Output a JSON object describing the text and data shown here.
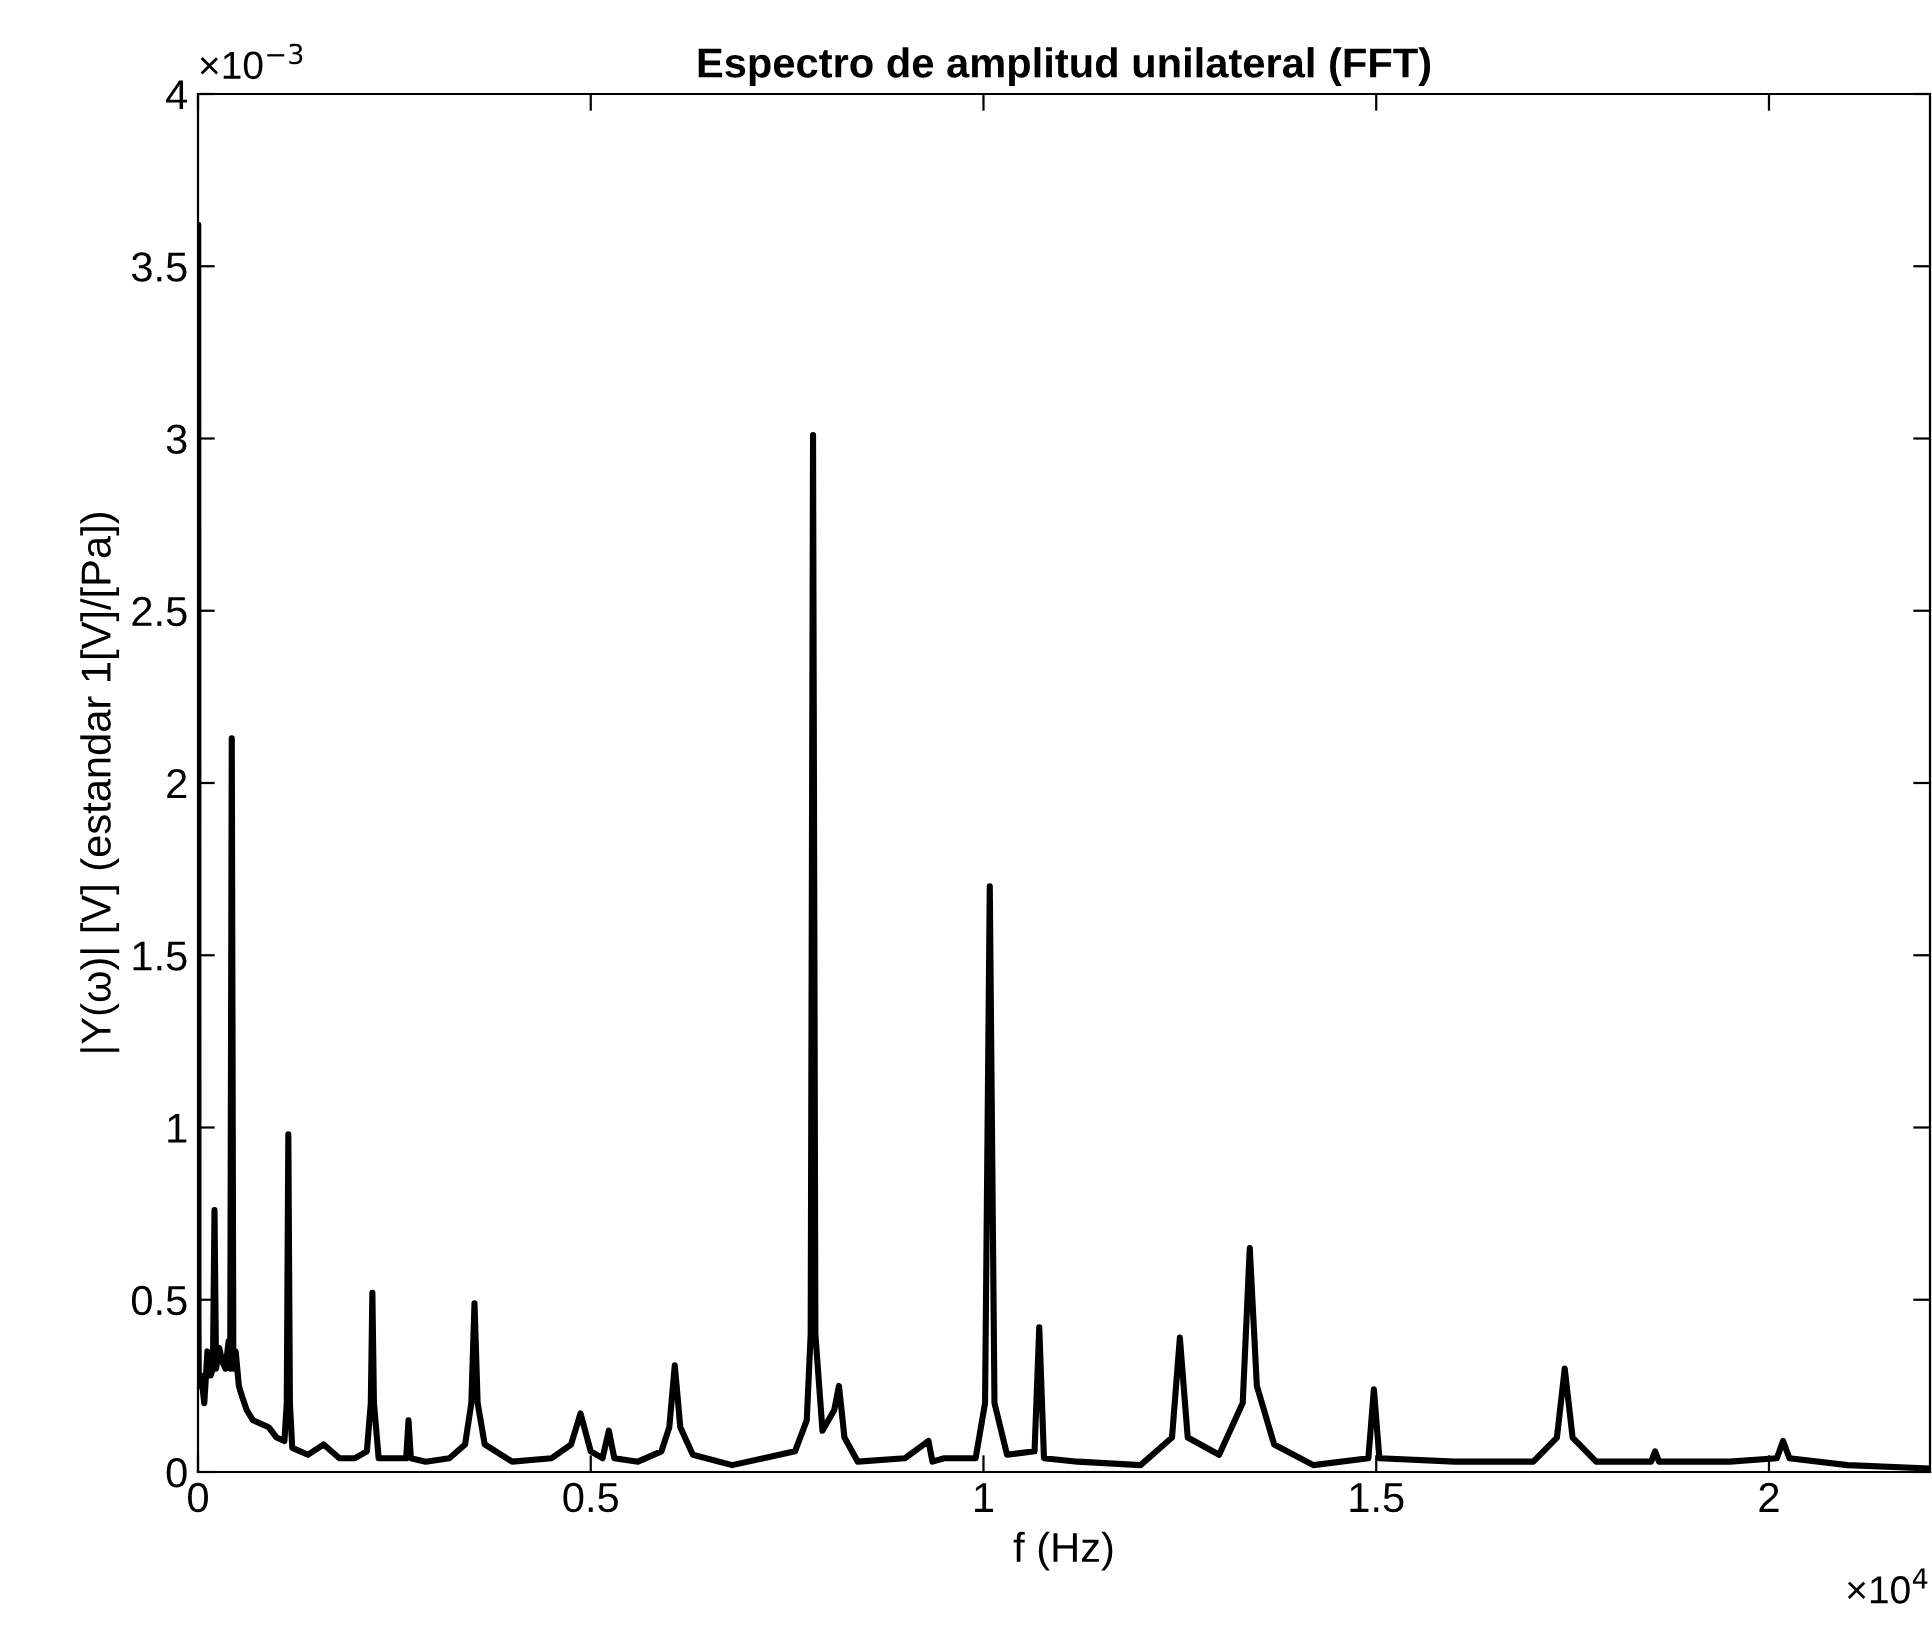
{
  "chart_data": {
    "type": "line",
    "title": "Espectro de amplitud unilateral (FFT)",
    "xlabel": "f (Hz)",
    "ylabel": "|Y(ω)| [V] (estandar 1[V]/[Pa])",
    "annotations": [
      "×10$^{−3}$",
      "×10$^{4}$"
    ],
    "x": [
      0,
      0.0003,
      0.0006,
      0.0009,
      0.0012,
      0.004,
      0.008,
      0.012,
      0.016,
      0.019,
      0.021,
      0.023,
      0.027,
      0.031,
      0.035,
      0.039,
      0.041,
      0.043,
      0.045,
      0.048,
      0.052,
      0.056,
      0.062,
      0.07,
      0.08,
      0.09,
      0.1,
      0.11,
      0.113,
      0.115,
      0.117,
      0.12,
      0.14,
      0.16,
      0.18,
      0.2,
      0.215,
      0.22,
      0.222,
      0.224,
      0.23,
      0.25,
      0.265,
      0.268,
      0.271,
      0.29,
      0.32,
      0.34,
      0.348,
      0.352,
      0.356,
      0.365,
      0.4,
      0.45,
      0.475,
      0.487,
      0.5,
      0.515,
      0.523,
      0.53,
      0.56,
      0.59,
      0.6,
      0.607,
      0.614,
      0.63,
      0.68,
      0.72,
      0.76,
      0.775,
      0.78,
      0.783,
      0.786,
      0.795,
      0.81,
      0.816,
      0.823,
      0.84,
      0.9,
      0.93,
      0.935,
      0.95,
      0.99,
      1.002,
      1.008,
      1.014,
      1.03,
      1.065,
      1.071,
      1.077,
      1.12,
      1.2,
      1.24,
      1.25,
      1.26,
      1.3,
      1.33,
      1.339,
      1.348,
      1.37,
      1.42,
      1.49,
      1.497,
      1.504,
      1.6,
      1.7,
      1.73,
      1.74,
      1.75,
      1.78,
      1.85,
      1.855,
      1.86,
      1.95,
      2.01,
      2.018,
      2.026,
      2.1,
      2.205
    ],
    "values": [
      1.65,
      3.62,
      0.45,
      0.3,
      0.25,
      0.28,
      0.2,
      0.35,
      0.28,
      0.3,
      0.76,
      0.3,
      0.36,
      0.32,
      0.3,
      0.38,
      0.3,
      2.13,
      0.3,
      0.35,
      0.25,
      0.22,
      0.18,
      0.15,
      0.14,
      0.13,
      0.1,
      0.09,
      0.2,
      0.98,
      0.2,
      0.07,
      0.05,
      0.08,
      0.04,
      0.04,
      0.06,
      0.2,
      0.52,
      0.2,
      0.04,
      0.04,
      0.04,
      0.15,
      0.04,
      0.03,
      0.04,
      0.08,
      0.2,
      0.49,
      0.2,
      0.08,
      0.03,
      0.04,
      0.08,
      0.17,
      0.06,
      0.04,
      0.12,
      0.04,
      0.03,
      0.06,
      0.13,
      0.31,
      0.13,
      0.05,
      0.02,
      0.04,
      0.06,
      0.15,
      0.4,
      3.01,
      0.4,
      0.12,
      0.18,
      0.25,
      0.1,
      0.03,
      0.04,
      0.09,
      0.03,
      0.04,
      0.04,
      0.2,
      1.7,
      0.2,
      0.05,
      0.06,
      0.42,
      0.04,
      0.03,
      0.02,
      0.1,
      0.39,
      0.1,
      0.05,
      0.2,
      0.65,
      0.25,
      0.08,
      0.02,
      0.04,
      0.24,
      0.04,
      0.03,
      0.03,
      0.1,
      0.3,
      0.1,
      0.03,
      0.03,
      0.06,
      0.03,
      0.03,
      0.04,
      0.09,
      0.04,
      0.02,
      0.01
    ],
    "color": "#000000",
    "xlim": [
      0,
      2.205
    ],
    "ylim": [
      0,
      4
    ],
    "xticks": [
      0,
      0.5,
      1,
      1.5,
      2
    ],
    "yticks": [
      0,
      0.5,
      1,
      1.5,
      2,
      2.5,
      3,
      3.5,
      4
    ],
    "grid": false,
    "legend": false
  }
}
